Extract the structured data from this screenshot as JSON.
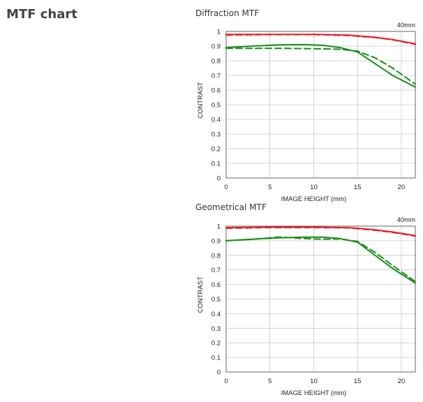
{
  "page": {
    "title": "MTF chart"
  },
  "chart_data": [
    {
      "type": "line",
      "title": "Diffraction MTF",
      "focal_length": "40mm",
      "xlabel": "IMAGE HEIGHT (mm)",
      "ylabel": "CONTRAST",
      "xlim": [
        0,
        21.6
      ],
      "ylim": [
        0,
        1
      ],
      "xticks": [
        0,
        5,
        10,
        15,
        20
      ],
      "yticks": [
        0,
        0.1,
        0.2,
        0.3,
        0.4,
        0.5,
        0.6,
        0.7,
        0.8,
        0.9,
        1
      ],
      "ytick_labels": [
        "0",
        "0.1",
        "0.2",
        "0.3",
        "0.4",
        "0.5",
        "0.6",
        "0.7",
        "0.8",
        "0.9",
        "1"
      ],
      "grid": true,
      "series": [
        {
          "color": "#e8202a",
          "dash": false,
          "x": [
            0,
            5,
            10,
            14,
            17,
            19,
            21.6
          ],
          "y": [
            0.98,
            0.98,
            0.98,
            0.975,
            0.96,
            0.945,
            0.915
          ]
        },
        {
          "color": "#e8202a",
          "dash": true,
          "x": [
            0,
            5,
            10,
            14,
            17,
            19,
            21.6
          ],
          "y": [
            0.975,
            0.978,
            0.978,
            0.972,
            0.958,
            0.943,
            0.912
          ]
        },
        {
          "color": "#1a8c1a",
          "dash": false,
          "x": [
            0,
            3,
            6,
            9,
            11,
            13,
            15,
            17,
            19,
            21.6
          ],
          "y": [
            0.89,
            0.9,
            0.908,
            0.91,
            0.905,
            0.89,
            0.86,
            0.78,
            0.7,
            0.62
          ]
        },
        {
          "color": "#1a8c1a",
          "dash": true,
          "x": [
            0,
            3,
            6,
            9,
            11,
            13,
            15,
            17,
            19,
            21.6
          ],
          "y": [
            0.885,
            0.885,
            0.885,
            0.883,
            0.881,
            0.878,
            0.865,
            0.82,
            0.75,
            0.64
          ]
        }
      ]
    },
    {
      "type": "line",
      "title": "Geometrical MTF",
      "focal_length": "40mm",
      "xlabel": "IMAGE HEIGHT (mm)",
      "ylabel": "CONTRAST",
      "xlim": [
        0,
        21.6
      ],
      "ylim": [
        0,
        1
      ],
      "xticks": [
        0,
        5,
        10,
        15,
        20
      ],
      "yticks": [
        0,
        0.1,
        0.2,
        0.3,
        0.4,
        0.5,
        0.6,
        0.7,
        0.8,
        0.9,
        1
      ],
      "ytick_labels": [
        "0",
        "0.1",
        "0.2",
        "0.3",
        "0.4",
        "0.5",
        "0.6",
        "0.7",
        "0.8",
        "0.9",
        "1"
      ],
      "grid": true,
      "series": [
        {
          "color": "#e8202a",
          "dash": false,
          "x": [
            0,
            5,
            10,
            14,
            17,
            19,
            21.6
          ],
          "y": [
            0.99,
            0.993,
            0.993,
            0.99,
            0.975,
            0.96,
            0.935
          ]
        },
        {
          "color": "#e8202a",
          "dash": true,
          "x": [
            0,
            5,
            10,
            14,
            17,
            19,
            21.6
          ],
          "y": [
            0.985,
            0.99,
            0.99,
            0.988,
            0.972,
            0.957,
            0.932
          ]
        },
        {
          "color": "#1a8c1a",
          "dash": false,
          "x": [
            0,
            3,
            6,
            9,
            11,
            13,
            15,
            17,
            19,
            21.6
          ],
          "y": [
            0.9,
            0.91,
            0.92,
            0.925,
            0.925,
            0.915,
            0.89,
            0.8,
            0.71,
            0.61
          ]
        },
        {
          "color": "#1a8c1a",
          "dash": true,
          "x": [
            0,
            3,
            6,
            9,
            11,
            13,
            15,
            17,
            19,
            21.6
          ],
          "y": [
            0.9,
            0.91,
            0.925,
            0.915,
            0.91,
            0.912,
            0.895,
            0.82,
            0.73,
            0.62
          ]
        }
      ]
    }
  ]
}
